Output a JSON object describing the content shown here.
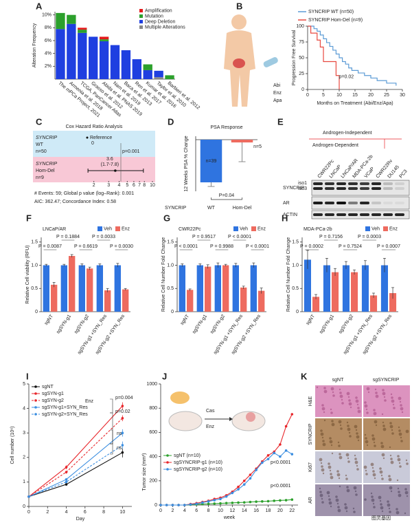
{
  "chart_data": [
    {
      "type": "stacked_bar",
      "label": "A",
      "y_label": "Alteration Frequency",
      "categories": [
        "The mPCa Project, 2021",
        "Armenia et al. 2018",
        "TCGA, PanCancer Atlas",
        "Grasso et al. 2012",
        "Abida et al. PNAS 2019",
        "Nam et al. 2019",
        "Baca et al. 2013",
        "Ren et al. 2017",
        "Kumar et al. 2016",
        "Taylor et al. 2010",
        "Barbieri et al. 2012"
      ],
      "series": [
        {
          "name": "Amplification",
          "color": "#e41a1c",
          "values": [
            0,
            0,
            0.3,
            0,
            0.4,
            0,
            0,
            0,
            0,
            0,
            0
          ]
        },
        {
          "name": "Mutation",
          "color": "#2ca02c",
          "values": [
            2.5,
            1.4,
            0.5,
            0,
            0.3,
            0,
            0,
            0,
            0.9,
            0,
            0.6
          ]
        },
        {
          "name": "Deep Deletion",
          "color": "#1f3fe0",
          "values": [
            7.8,
            8.6,
            7.2,
            6.6,
            5.9,
            5.3,
            4.5,
            3.1,
            1.4,
            1.0,
            0
          ]
        },
        {
          "name": "Multiple Alterations",
          "color": "#888888",
          "values": [
            0,
            0,
            0,
            0,
            0,
            0,
            0,
            0,
            0,
            0.3,
            0
          ]
        }
      ],
      "ylim": [
        0,
        10.5
      ],
      "yticks": [
        {
          "value": 2,
          "label": "2%"
        },
        {
          "value": 4,
          "label": "4%"
        },
        {
          "value": 6,
          "label": "6%"
        },
        {
          "value": 8,
          "label": "8%"
        },
        {
          "value": 10,
          "label": "10%"
        }
      ]
    },
    {
      "type": "step",
      "label": "B",
      "y_label": "Progression Free Survival",
      "x_label": "Months on Treatment (Abi/Enz/Apa)",
      "drugs": [
        "Abi",
        "Enz",
        "Apa"
      ],
      "series": [
        {
          "name": "SYNCRIP WT (n=50)",
          "color": "#5b9bd5",
          "x": [
            0,
            2,
            3,
            4,
            5,
            6,
            7,
            8,
            9,
            10,
            11,
            12,
            13,
            14,
            16,
            18,
            20,
            22,
            25,
            28
          ],
          "y": [
            100,
            96,
            92,
            86,
            80,
            74,
            68,
            62,
            56,
            50,
            44,
            40,
            34,
            30,
            26,
            22,
            18,
            14,
            10,
            6
          ]
        },
        {
          "name": "SYNCRIP Hom-Del (n=9)",
          "color": "#e8483f",
          "x": [
            0,
            1,
            3,
            4,
            5,
            9,
            10
          ],
          "y": [
            100,
            89,
            78,
            67,
            44,
            22,
            0
          ]
        }
      ],
      "xlim": [
        0,
        30
      ],
      "ylim": [
        0,
        100
      ],
      "xticks": [
        0,
        5,
        10,
        15,
        20,
        25,
        30
      ],
      "yticks": [
        0,
        25,
        50,
        75,
        100
      ],
      "annotation": "p=0.02"
    },
    {
      "type": "forest",
      "label": "C",
      "title": "Cox Hazard Ratio Analysis",
      "rows": [
        {
          "gene": "SYNCRIP",
          "group": "WT",
          "n": "n=50",
          "text": "Reference",
          "subtext": "0",
          "color": "#cfeaf7"
        },
        {
          "gene": "SYNCRIP",
          "group": "Hom-Del",
          "n": "n=9",
          "hr": 3.6,
          "ci": [
            1.7,
            7.8
          ],
          "ci_label": "(1.7-7.8)",
          "p": "p=0.001",
          "color": "#f8c8d6"
        }
      ],
      "log": true,
      "xlim": [
        1,
        10
      ],
      "xticks": [
        2,
        3,
        4,
        5,
        6,
        7,
        8,
        10
      ],
      "footer": [
        "# Events: 59; Global p value (log–Rank): 0.001",
        "AIC: 362.47; Concordance Index: 0.58"
      ]
    },
    {
      "type": "bar",
      "label": "D",
      "title": "PSA Response",
      "y_label": "12 Weeks PSA % Change",
      "group_label": "SYNCRIP",
      "categories": [
        "WT",
        "Hom-Del"
      ],
      "values": [
        -62,
        -4
      ],
      "errors": [
        6,
        28
      ],
      "colors": [
        "#2f74e0",
        "#ee6b5f"
      ],
      "n_labels": [
        "n=39",
        "n=5"
      ],
      "p_label": "P=0.04",
      "ylim": [
        -75,
        5
      ]
    },
    {
      "type": "grouped_bar",
      "label": "F",
      "title": "LNCaP/AR",
      "y_label": "Relative Cell viability (RFU)",
      "categories": [
        "sgNT",
        "sgSYN-g1",
        "sgSYN-g2",
        "sgSYN-g1 +SYN_Res",
        "sgSYN-g2 +SYN_Res"
      ],
      "series": [
        {
          "name": "Veh",
          "color": "#2f74e0",
          "values": [
            1.0,
            1.0,
            1.0,
            1.0,
            1.0
          ],
          "errors": [
            0.02,
            0.02,
            0.03,
            0.03,
            0.04
          ]
        },
        {
          "name": "Enz",
          "color": "#ee6b5f",
          "values": [
            0.58,
            1.2,
            0.93,
            0.46,
            0.48
          ],
          "errors": [
            0.05,
            0.03,
            0.03,
            0.04,
            0.02
          ]
        }
      ],
      "p_labels": [
        "P = 0.0087",
        "P = 0.1884",
        "P = 0.6619",
        "P = 0.0033",
        "P = 0.0030"
      ],
      "ylim": [
        0,
        1.6
      ],
      "yticks": [
        0,
        0.5,
        {
          "value": 1,
          "label": "1.0"
        },
        1.5
      ]
    },
    {
      "type": "grouped_bar",
      "label": "G",
      "title": "CWR22Pc",
      "y_label": "Relative Cell Number Fold Change",
      "categories": [
        "sgNT",
        "sgSYN-g1",
        "sgSYN-g2",
        "sgSYN-g1 +SYN_Res",
        "sgSYN-g2 +SYN_Res"
      ],
      "series": [
        {
          "name": "Veh",
          "color": "#2f74e0",
          "values": [
            1.0,
            1.0,
            1.0,
            1.0,
            1.0
          ],
          "errors": [
            0.03,
            0.03,
            0.05,
            0.04,
            0.05
          ]
        },
        {
          "name": "Enz",
          "color": "#ee6b5f",
          "values": [
            0.47,
            0.97,
            1.0,
            0.52,
            0.45
          ],
          "errors": [
            0.02,
            0.04,
            0.02,
            0.03,
            0.06
          ]
        }
      ],
      "p_labels": [
        "P < 0.0001",
        "P = 0.9517",
        "P = 0.9988",
        "P < 0.0001",
        "P < 0.0001"
      ],
      "ylim": [
        0,
        1.6
      ],
      "yticks": [
        0,
        0.5,
        {
          "value": 1,
          "label": "1.0"
        },
        1.5
      ]
    },
    {
      "type": "grouped_bar",
      "label": "H",
      "title": "MDA-PCa-2b",
      "y_label": "Relative Cell Number Fold Change",
      "categories": [
        "sgNT",
        "sgSYN-g1",
        "sgSYN-g2",
        "sgSYN-g1 +SYN_Res",
        "sgSYN-g2 +SYN_Res"
      ],
      "series": [
        {
          "name": "Veh",
          "color": "#2f74e0",
          "values": [
            1.12,
            1.0,
            1.0,
            1.0,
            1.0
          ],
          "errors": [
            0.2,
            0.15,
            0.08,
            0.1,
            0.15
          ]
        },
        {
          "name": "Enz",
          "color": "#ee6b5f",
          "values": [
            0.32,
            0.85,
            0.85,
            0.35,
            0.4
          ],
          "errors": [
            0.05,
            0.08,
            0.05,
            0.05,
            0.12
          ]
        }
      ],
      "p_labels": [
        "P = 0.0002",
        "P = 0.7156",
        "P = 0.7524",
        "P = 0.0003",
        "P = 0.0007"
      ],
      "ylim": [
        0,
        1.6
      ],
      "yticks": [
        0,
        0.5,
        {
          "value": 1,
          "label": "1.0"
        },
        1.5
      ]
    },
    {
      "type": "line",
      "label": "I",
      "x_label": "Day",
      "y_label": "Cell number (10⁶)",
      "x": [
        0,
        4,
        10
      ],
      "series": [
        {
          "name": "sgNT",
          "color": "#111111",
          "dash": false,
          "values": [
            0.4,
            0.9,
            2.2
          ],
          "errors": [
            0.03,
            0.05,
            0.2
          ]
        },
        {
          "name": "sgSYN-g1",
          "color": "#e8262b",
          "dash": false,
          "values": [
            0.4,
            1.6,
            4.1
          ],
          "errors": [
            0.03,
            0.08,
            0.15
          ]
        },
        {
          "name": "sgSYN-g2",
          "color": "#e8262b",
          "dash": true,
          "values": [
            0.4,
            1.4,
            3.6
          ],
          "errors": [
            0.03,
            0.06,
            0.12
          ]
        },
        {
          "name": "sgSYN-g1+SYN_Res",
          "color": "#3b8ee0",
          "dash": false,
          "values": [
            0.4,
            1.1,
            3.0
          ],
          "errors": [
            0.03,
            0.05,
            0.15
          ]
        },
        {
          "name": "sgSYN-g2+SYN_Res",
          "color": "#3b8ee0",
          "dash": true,
          "values": [
            0.4,
            1.0,
            2.5
          ],
          "errors": [
            0.03,
            0.05,
            0.15
          ]
        }
      ],
      "annotations": [
        "Enz",
        "p=0.004",
        "p=0.02",
        "ns",
        "ns"
      ],
      "xlim": [
        0,
        11
      ],
      "ylim": [
        0,
        5
      ],
      "xticks": [
        0,
        2,
        4,
        6,
        8,
        10
      ],
      "yticks": [
        0,
        1,
        2,
        3,
        4,
        5
      ]
    },
    {
      "type": "line",
      "label": "J",
      "x_label": "week",
      "y_label": "Tumor size (mm³)",
      "x": [
        0,
        1,
        2,
        3,
        4,
        5,
        6,
        7,
        8,
        9,
        10,
        11,
        12,
        13,
        14,
        15,
        16,
        17,
        18,
        19,
        20,
        21,
        22
      ],
      "series": [
        {
          "name": "sgNT (n=10)",
          "color": "#2ca02c",
          "dash": false,
          "values": [
            0,
            0,
            0,
            0,
            0,
            3,
            5,
            8,
            10,
            12,
            14,
            16,
            18,
            20,
            22,
            25,
            28,
            30,
            32,
            35,
            38,
            40,
            45
          ]
        },
        {
          "name": "sgSYNCRIP-g1 (n=10)",
          "color": "#e8262b",
          "dash": false,
          "values": [
            0,
            0,
            0,
            0,
            0,
            8,
            15,
            25,
            35,
            50,
            60,
            80,
            110,
            150,
            200,
            250,
            300,
            360,
            410,
            440,
            500,
            650,
            750
          ]
        },
        {
          "name": "sgSYNCRIP-g2 (n=10)",
          "color": "#3b8ee0",
          "dash": false,
          "values": [
            0,
            0,
            0,
            0,
            0,
            5,
            10,
            20,
            30,
            40,
            50,
            70,
            100,
            130,
            170,
            220,
            290,
            350,
            380,
            430,
            400,
            450,
            420
          ]
        }
      ],
      "annotations": [
        "Cas",
        "Enz",
        "p<0.0001",
        "p<0.0001"
      ],
      "xlim": [
        0,
        23
      ],
      "ylim": [
        0,
        1000
      ],
      "xticks": [
        0,
        2,
        4,
        6,
        8,
        10,
        12,
        14,
        16,
        18,
        20,
        22
      ],
      "yticks": [
        0,
        200,
        400,
        600,
        800,
        1000
      ]
    }
  ],
  "blot": {
    "label": "E",
    "groups": [
      "Androgen-Independent",
      "Androgen-Dependent"
    ],
    "lanes": [
      {
        "name": "CWR22Pc",
        "color": "#2f74e0"
      },
      {
        "name": "LNCaP",
        "color": "#2f74e0"
      },
      {
        "name": "LNCaP/AR",
        "color": "#2f74e0"
      },
      {
        "name": "MDA-PCa-2b",
        "color": "#2f74e0"
      },
      {
        "name": "VCaP",
        "color": "#2f74e0"
      },
      {
        "name": "CWR22Rv",
        "color": "#e8262b"
      },
      {
        "name": "DU145",
        "color": "#e8262b"
      },
      {
        "name": "PC3",
        "color": "#e8262b"
      }
    ],
    "rows": [
      "SYNCRIP",
      "AR",
      "ACTIN"
    ],
    "isoforms": [
      "iso1",
      "iso3"
    ]
  },
  "histology": {
    "label": "K",
    "columns": [
      "sgNT",
      "sgSYNCRIP"
    ],
    "rows": [
      "H&E",
      "SYNCRIP",
      "Ki67",
      "AR"
    ]
  },
  "watermark": "图灵基因"
}
